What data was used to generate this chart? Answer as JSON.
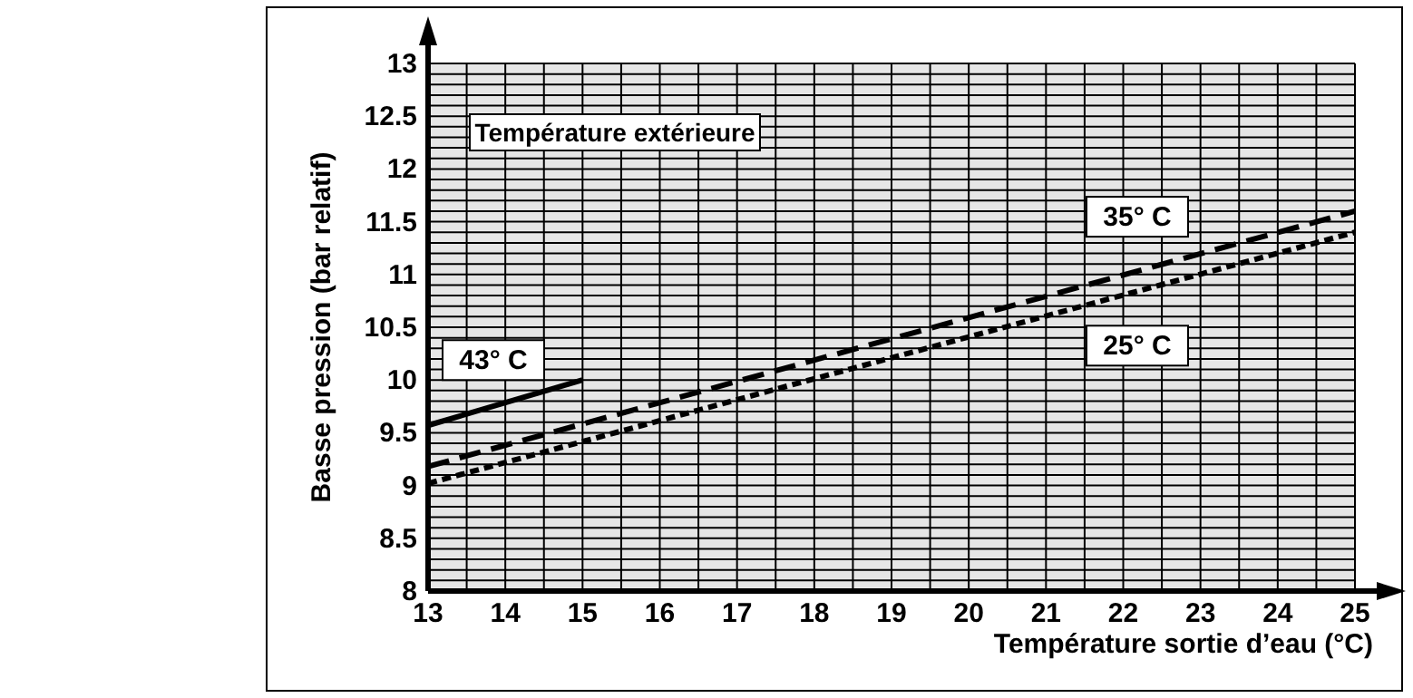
{
  "chart_data": {
    "type": "line",
    "legend_title": "Température extérieure",
    "xlabel": "Température sortie d’eau (°C)",
    "ylabel": "Basse pression  (bar relatif)",
    "x": [
      13,
      25
    ],
    "series": [
      {
        "name": "43° C",
        "color": "#000000",
        "x": [
          13,
          15
        ],
        "values": [
          9.57,
          10
        ],
        "line_style": "solid"
      },
      {
        "name": "35° C",
        "color": "#000000",
        "values": [
          9.18,
          11.6
        ],
        "line_style": "dashed"
      },
      {
        "name": "25° C",
        "color": "#000000",
        "values": [
          9.02,
          11.4
        ],
        "line_style": "dotted"
      }
    ],
    "xlim": [
      13,
      25
    ],
    "xticks": [
      13,
      14,
      15,
      16,
      17,
      18,
      19,
      20,
      21,
      22,
      23,
      24,
      25
    ],
    "ylim": [
      8,
      13
    ],
    "yticks": [
      8,
      8.5,
      9,
      9.5,
      10,
      10.5,
      11,
      11.5,
      12,
      12.5,
      13
    ],
    "grid": true
  }
}
